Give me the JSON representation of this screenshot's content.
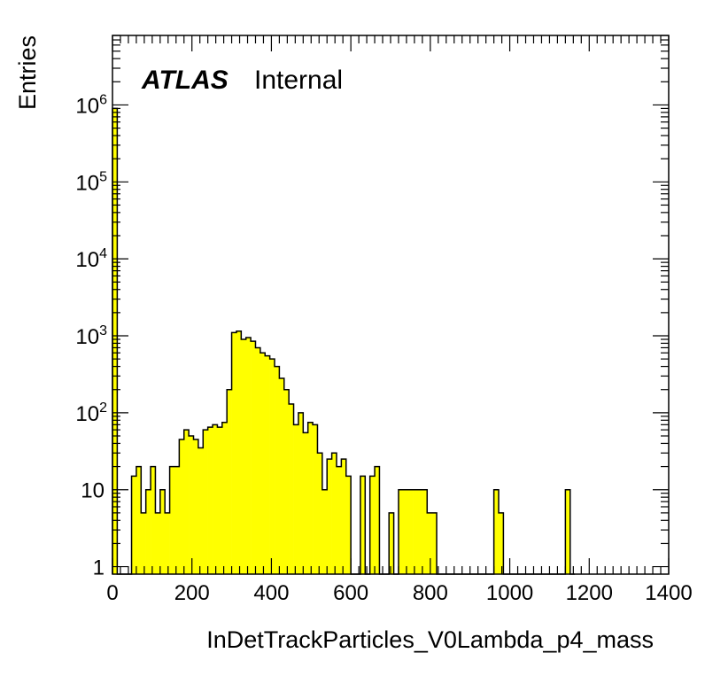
{
  "chart_data": {
    "type": "histogram",
    "xlabel": "InDetTrackParticles_V0Lambda_p4_mass",
    "ylabel": "Entries",
    "xlim": [
      0,
      1400
    ],
    "ylim": [
      0.8,
      8000000
    ],
    "yscale": "log",
    "bin_width": 12,
    "fill_color": "#ffff00",
    "line_color": "#000000",
    "x_ticks": [
      "0",
      "200",
      "400",
      "600",
      "800",
      "1000",
      "1200",
      "1400"
    ],
    "x_tick_values": [
      0,
      200,
      400,
      600,
      800,
      1000,
      1200,
      1400
    ],
    "y_ticks": [
      {
        "value": 1,
        "label": "1",
        "exp": ""
      },
      {
        "value": 10,
        "label": "10",
        "exp": ""
      },
      {
        "value": 100,
        "label": "10",
        "exp": "2"
      },
      {
        "value": 1000,
        "label": "10",
        "exp": "3"
      },
      {
        "value": 10000,
        "label": "10",
        "exp": "4"
      },
      {
        "value": 100000,
        "label": "10",
        "exp": "5"
      },
      {
        "value": 1000000,
        "label": "10",
        "exp": "6"
      }
    ],
    "annotation": {
      "bold": "ATLAS",
      "normal": "Internal"
    },
    "bins": [
      [
        0,
        900000
      ],
      [
        12,
        0
      ],
      [
        24,
        0
      ],
      [
        36,
        0
      ],
      [
        48,
        15
      ],
      [
        60,
        20
      ],
      [
        72,
        5
      ],
      [
        84,
        10
      ],
      [
        96,
        20
      ],
      [
        108,
        5
      ],
      [
        120,
        10
      ],
      [
        132,
        5
      ],
      [
        144,
        20
      ],
      [
        156,
        20
      ],
      [
        168,
        45
      ],
      [
        180,
        60
      ],
      [
        192,
        50
      ],
      [
        204,
        45
      ],
      [
        216,
        35
      ],
      [
        228,
        60
      ],
      [
        240,
        65
      ],
      [
        252,
        70
      ],
      [
        264,
        65
      ],
      [
        276,
        75
      ],
      [
        288,
        200
      ],
      [
        300,
        1100
      ],
      [
        312,
        1150
      ],
      [
        324,
        900
      ],
      [
        336,
        950
      ],
      [
        348,
        850
      ],
      [
        360,
        700
      ],
      [
        372,
        600
      ],
      [
        384,
        550
      ],
      [
        396,
        500
      ],
      [
        408,
        400
      ],
      [
        420,
        280
      ],
      [
        432,
        200
      ],
      [
        444,
        130
      ],
      [
        456,
        70
      ],
      [
        468,
        100
      ],
      [
        480,
        55
      ],
      [
        492,
        75
      ],
      [
        504,
        70
      ],
      [
        516,
        30
      ],
      [
        528,
        10
      ],
      [
        540,
        25
      ],
      [
        552,
        30
      ],
      [
        564,
        20
      ],
      [
        576,
        25
      ],
      [
        588,
        15
      ],
      [
        600,
        0
      ],
      [
        612,
        0
      ],
      [
        624,
        15
      ],
      [
        636,
        0
      ],
      [
        648,
        15
      ],
      [
        660,
        20
      ],
      [
        672,
        0
      ],
      [
        684,
        0
      ],
      [
        696,
        5
      ],
      [
        708,
        0
      ],
      [
        720,
        10
      ],
      [
        732,
        10
      ],
      [
        744,
        10
      ],
      [
        756,
        10
      ],
      [
        768,
        10
      ],
      [
        780,
        10
      ],
      [
        792,
        5
      ],
      [
        804,
        5
      ],
      [
        816,
        0
      ],
      [
        828,
        0
      ],
      [
        840,
        0
      ],
      [
        852,
        0
      ],
      [
        864,
        0
      ],
      [
        876,
        0
      ],
      [
        888,
        0
      ],
      [
        900,
        0
      ],
      [
        912,
        0
      ],
      [
        924,
        0
      ],
      [
        936,
        0
      ],
      [
        948,
        0
      ],
      [
        960,
        10
      ],
      [
        972,
        5
      ],
      [
        984,
        0
      ],
      [
        996,
        0
      ],
      [
        1008,
        0
      ],
      [
        1020,
        0
      ],
      [
        1032,
        0
      ],
      [
        1044,
        0
      ],
      [
        1056,
        0
      ],
      [
        1068,
        0
      ],
      [
        1080,
        0
      ],
      [
        1092,
        0
      ],
      [
        1104,
        0
      ],
      [
        1116,
        0
      ],
      [
        1128,
        0
      ],
      [
        1140,
        10
      ],
      [
        1152,
        0
      ]
    ]
  }
}
